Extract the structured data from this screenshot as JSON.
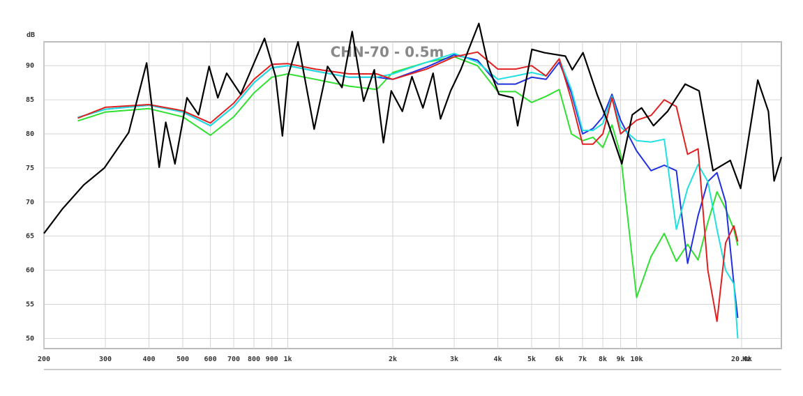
{
  "chart_data": {
    "type": "line",
    "title": "CHN-70 - 0.5m",
    "y_unit": "dB",
    "x_unit": "Hz",
    "log_x": true,
    "grid": true,
    "xlim": [
      200,
      26000
    ],
    "ylim": [
      48.5,
      93.5
    ],
    "xticks": [
      200,
      300,
      400,
      500,
      600,
      700,
      800,
      900,
      {
        "value": 1000,
        "label": "1k"
      },
      {
        "value": 2000,
        "label": "2k"
      },
      {
        "value": 3000,
        "label": "3k"
      },
      {
        "value": 4000,
        "label": "4k"
      },
      {
        "value": 5000,
        "label": "5k"
      },
      {
        "value": 6000,
        "label": "6k"
      },
      {
        "value": 7000,
        "label": "7k"
      },
      {
        "value": 8000,
        "label": "8k"
      },
      {
        "value": 9000,
        "label": "9k"
      },
      {
        "value": 10000,
        "label": "10k"
      },
      {
        "value": 20000,
        "label": "20.0k"
      }
    ],
    "yticks": [
      50,
      55,
      60,
      65,
      70,
      75,
      80,
      85,
      90
    ],
    "series": [
      {
        "color": "#000000",
        "width": 2.2,
        "x": [
          200,
          226,
          260,
          298,
          350,
          394,
          428,
          447,
          475,
          514,
          555,
          595,
          630,
          668,
          733,
          858,
          923,
          965,
          1000,
          1070,
          1190,
          1300,
          1430,
          1530,
          1650,
          1770,
          1880,
          1980,
          2130,
          2270,
          2440,
          2610,
          2740,
          2930,
          3130,
          3530,
          3760,
          4030,
          4420,
          4560,
          5010,
          5440,
          6250,
          6540,
          7020,
          7700,
          8270,
          9070,
          9720,
          10330,
          11180,
          12270,
          13780,
          15110,
          16560,
          18560,
          19870,
          22250,
          23870,
          24780,
          26000
        ],
        "values": [
          65.4,
          69,
          72.5,
          75,
          80.2,
          90.4,
          75.1,
          81.7,
          75.6,
          85.3,
          82.8,
          89.9,
          85.3,
          88.9,
          85.8,
          94,
          88.4,
          79.7,
          88.4,
          93.5,
          80.7,
          89.9,
          86.8,
          95,
          84.8,
          89.4,
          78.7,
          86.3,
          83.3,
          88.4,
          83.8,
          88.9,
          82.2,
          86.3,
          89.4,
          96.2,
          89.9,
          85.8,
          85.3,
          81.2,
          92.4,
          91.9,
          91.4,
          89.4,
          91.9,
          85.8,
          81.7,
          75.6,
          82.8,
          83.8,
          81.2,
          83.3,
          87.3,
          86.3,
          74.6,
          76.1,
          72,
          87.9,
          83.3,
          73.1,
          76.6
        ]
      },
      {
        "color": "#e02020",
        "width": 2,
        "x": [
          250,
          300,
          400,
          500,
          600,
          700,
          800,
          900,
          1000,
          1200,
          1500,
          1800,
          2000,
          2500,
          3000,
          3500,
          4000,
          4500,
          5000,
          5500,
          6000,
          6500,
          7000,
          7500,
          8000,
          8500,
          9000,
          10000,
          11000,
          12000,
          13000,
          14000,
          15000,
          16000,
          17000,
          18000,
          19000,
          19500
        ],
        "values": [
          82.3,
          83.9,
          84.3,
          83.4,
          81.6,
          84.5,
          88,
          90.2,
          90.3,
          89.5,
          88.8,
          88.8,
          88,
          89.5,
          91.3,
          92,
          89.5,
          89.5,
          90,
          88.5,
          91,
          85,
          78.5,
          78.5,
          80,
          85.3,
          80,
          82,
          82.7,
          85,
          84,
          77,
          77.8,
          60,
          52.5,
          64,
          66.5,
          64.2
        ]
      },
      {
        "color": "#20e0e0",
        "width": 2,
        "x": [
          250,
          300,
          400,
          500,
          600,
          700,
          800,
          900,
          1000,
          1200,
          1500,
          1800,
          2000,
          2500,
          3000,
          3500,
          4000,
          4500,
          5000,
          5500,
          6000,
          6500,
          7000,
          7500,
          8000,
          8500,
          9000,
          10000,
          11000,
          12000,
          13000,
          14000,
          15000,
          16000,
          17000,
          18000,
          19000,
          19500
        ],
        "values": [
          82.4,
          83.6,
          84.2,
          83.2,
          81.2,
          84,
          87.5,
          89.7,
          90,
          89.2,
          88.3,
          88.3,
          88.8,
          90.5,
          91.8,
          90.5,
          88,
          88.5,
          89,
          88.5,
          91,
          86.5,
          80.5,
          80.5,
          81.5,
          85.5,
          81,
          79,
          78.8,
          79.2,
          66,
          72,
          75.5,
          73,
          66,
          60,
          58,
          50
        ]
      },
      {
        "color": "#2030e0",
        "width": 2,
        "x": [
          250,
          300,
          400,
          500,
          600,
          700,
          800,
          900,
          1000,
          1200,
          1500,
          1800,
          2000,
          2500,
          3000,
          3500,
          4000,
          4500,
          5000,
          5500,
          6000,
          6500,
          7000,
          7500,
          8000,
          8500,
          9000,
          10000,
          11000,
          12000,
          13000,
          14000,
          15000,
          16000,
          17000,
          18000,
          19000,
          19500
        ],
        "values": [
          82.4,
          83.6,
          84.2,
          83.2,
          81.2,
          84,
          87.5,
          89.7,
          90,
          89.2,
          88.3,
          88.3,
          88,
          89.8,
          91.6,
          90.8,
          87.3,
          87.3,
          88.3,
          88,
          90.5,
          86,
          80,
          80.8,
          82.5,
          85.8,
          82,
          77.5,
          74.6,
          75.4,
          74.6,
          61,
          68,
          73,
          74.3,
          70,
          58,
          53
        ]
      },
      {
        "color": "#30e030",
        "width": 2,
        "x": [
          250,
          300,
          400,
          500,
          600,
          700,
          800,
          900,
          1000,
          1200,
          1500,
          1800,
          2000,
          2500,
          3000,
          3500,
          4000,
          4500,
          5000,
          5500,
          6000,
          6500,
          7000,
          7500,
          8000,
          8500,
          9000,
          10000,
          11000,
          12000,
          13000,
          14000,
          15000,
          16000,
          17000,
          18000,
          19000,
          19500
        ],
        "values": [
          81.9,
          83.2,
          83.7,
          82.5,
          79.8,
          82.5,
          86,
          88.3,
          88.8,
          88,
          87,
          86.5,
          89,
          90.5,
          91.3,
          90,
          86.2,
          86.2,
          84.6,
          85.5,
          86.5,
          80,
          79,
          79.5,
          78,
          81.3,
          77,
          56,
          62,
          65.4,
          61.3,
          63.8,
          61.5,
          67,
          71.5,
          69,
          66,
          63.6
        ]
      }
    ]
  }
}
